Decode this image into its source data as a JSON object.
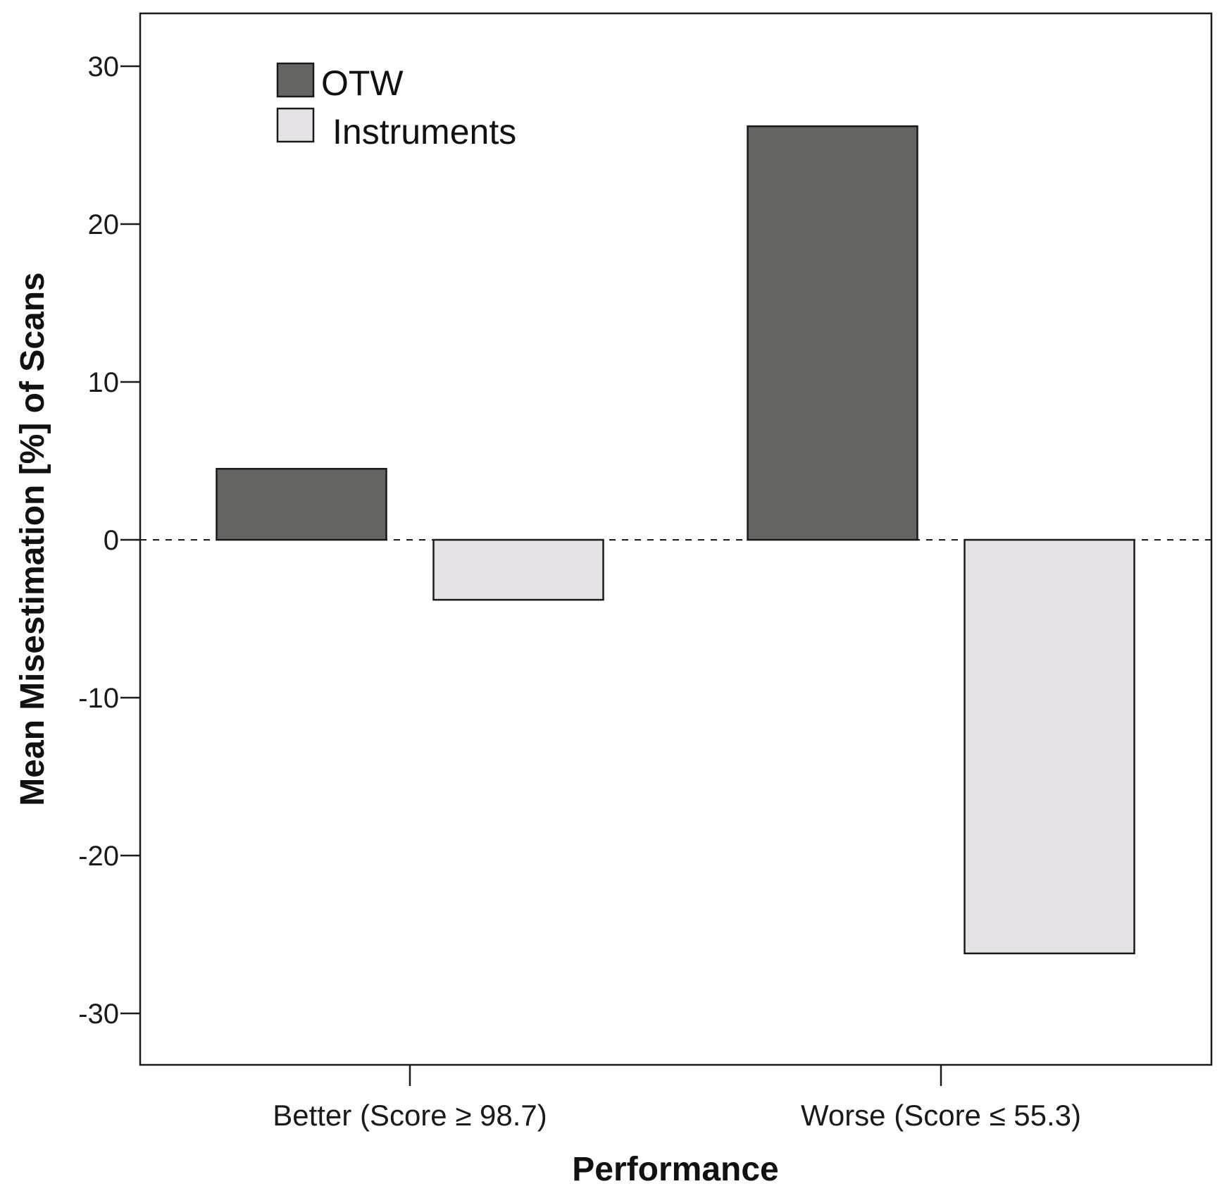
{
  "chart_data": {
    "type": "bar",
    "title": "",
    "xlabel": "Performance",
    "ylabel": "Mean Misestimation [%] of Scans",
    "categories": [
      "Better (Score ≥ 98.7)",
      "Worse (Score ≤ 55.3)"
    ],
    "series": [
      {
        "name": "OTW",
        "values": [
          4.5,
          26.2
        ],
        "color": "#636561"
      },
      {
        "name": "Instruments",
        "values": [
          -3.8,
          -26.2
        ],
        "color": "#e6e1e6"
      }
    ],
    "ylim": [
      -33.5,
      33.5
    ],
    "yticks": [
      30,
      20,
      10,
      0,
      -10,
      -20,
      -30
    ],
    "reference_line": {
      "y": 0,
      "style": "dashed"
    },
    "legend_position": "top-left",
    "grid": false
  }
}
